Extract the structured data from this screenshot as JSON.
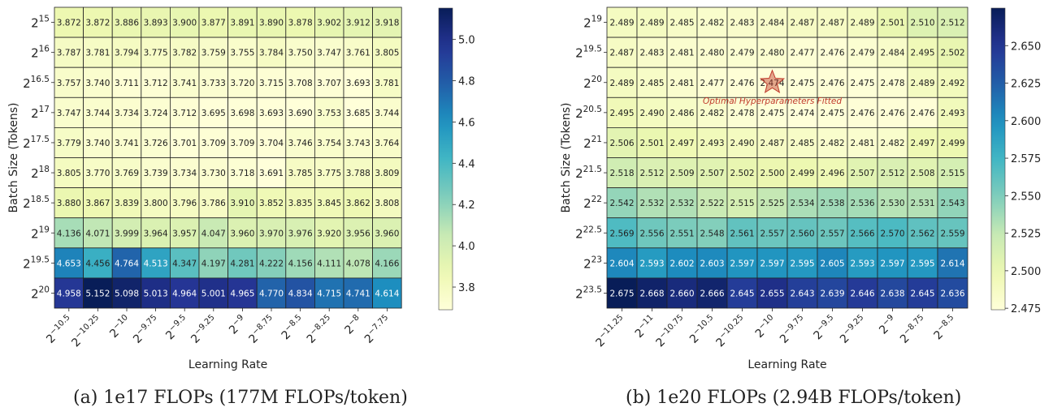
{
  "chart_data": [
    {
      "type": "heatmap",
      "caption": "(a)  1e17 FLOPs (177M FLOPs/token)",
      "xlabel": "Learning Rate",
      "ylabel": "Batch Size (Tokens)",
      "x_ticks": [
        "−10.5",
        "−10.25",
        "−10",
        "−9.75",
        "−9.5",
        "−9.25",
        "−9",
        "−8.75",
        "−8.5",
        "−8.25",
        "−8",
        "−7.75"
      ],
      "y_ticks": [
        "15",
        "16",
        "16.5",
        "17",
        "17.5",
        "18",
        "18.5",
        "19",
        "19.5",
        "20"
      ],
      "values": [
        [
          3.872,
          3.872,
          3.886,
          3.893,
          3.9,
          3.877,
          3.891,
          3.89,
          3.878,
          3.902,
          3.912,
          3.918
        ],
        [
          3.787,
          3.781,
          3.794,
          3.775,
          3.782,
          3.759,
          3.755,
          3.784,
          3.75,
          3.747,
          3.761,
          3.805
        ],
        [
          3.757,
          3.74,
          3.711,
          3.712,
          3.741,
          3.733,
          3.72,
          3.715,
          3.708,
          3.707,
          3.693,
          3.781
        ],
        [
          3.747,
          3.744,
          3.734,
          3.724,
          3.712,
          3.695,
          3.698,
          3.693,
          3.69,
          3.753,
          3.685,
          3.744
        ],
        [
          3.779,
          3.74,
          3.741,
          3.726,
          3.701,
          3.709,
          3.709,
          3.704,
          3.746,
          3.754,
          3.743,
          3.764
        ],
        [
          3.805,
          3.77,
          3.769,
          3.739,
          3.734,
          3.73,
          3.718,
          3.691,
          3.785,
          3.775,
          3.788,
          3.809
        ],
        [
          3.88,
          3.867,
          3.839,
          3.8,
          3.796,
          3.786,
          3.91,
          3.852,
          3.835,
          3.845,
          3.862,
          3.808
        ],
        [
          4.136,
          4.071,
          3.999,
          3.964,
          3.957,
          4.047,
          3.96,
          3.97,
          3.976,
          3.92,
          3.956,
          3.96
        ],
        [
          4.653,
          4.456,
          4.764,
          4.513,
          4.347,
          4.197,
          4.281,
          4.222,
          4.156,
          4.111,
          4.078,
          4.166
        ],
        [
          4.958,
          5.152,
          5.098,
          5.013,
          4.964,
          5.001,
          4.965,
          4.77,
          4.834,
          4.715,
          4.741,
          4.614
        ]
      ],
      "vmin": 3.69,
      "vmax": 5.152,
      "colorbar_ticks": [
        "3.8",
        "4.0",
        "4.2",
        "4.4",
        "4.6",
        "4.8",
        "5.0"
      ]
    },
    {
      "type": "heatmap",
      "caption": "(b)  1e20 FLOPs (2.94B FLOPs/token)",
      "xlabel": "Learning Rate",
      "ylabel": "Batch Size (Tokens)",
      "x_ticks": [
        "−11.25",
        "−11",
        "−10.75",
        "−10.5",
        "−10.25",
        "−10",
        "−9.75",
        "−9.5",
        "−9.25",
        "−9",
        "−8.75",
        "−8.5"
      ],
      "y_ticks": [
        "19",
        "19.5",
        "20",
        "20.5",
        "21",
        "21.5",
        "22",
        "22.5",
        "23",
        "23.5"
      ],
      "values": [
        [
          2.489,
          2.489,
          2.485,
          2.482,
          2.483,
          2.484,
          2.487,
          2.487,
          2.489,
          2.501,
          2.51,
          2.512
        ],
        [
          2.487,
          2.483,
          2.481,
          2.48,
          2.479,
          2.48,
          2.477,
          2.476,
          2.479,
          2.484,
          2.495,
          2.502
        ],
        [
          2.489,
          2.485,
          2.481,
          2.477,
          2.476,
          2.474,
          2.475,
          2.476,
          2.475,
          2.478,
          2.489,
          2.492
        ],
        [
          2.495,
          2.49,
          2.486,
          2.482,
          2.478,
          2.475,
          2.474,
          2.475,
          2.476,
          2.476,
          2.476,
          2.493
        ],
        [
          2.506,
          2.501,
          2.497,
          2.493,
          2.49,
          2.487,
          2.485,
          2.482,
          2.481,
          2.482,
          2.497,
          2.499
        ],
        [
          2.518,
          2.512,
          2.509,
          2.507,
          2.502,
          2.5,
          2.499,
          2.496,
          2.507,
          2.512,
          2.508,
          2.515
        ],
        [
          2.542,
          2.532,
          2.532,
          2.522,
          2.515,
          2.525,
          2.534,
          2.538,
          2.536,
          2.53,
          2.531,
          2.543
        ],
        [
          2.569,
          2.556,
          2.551,
          2.548,
          2.561,
          2.557,
          2.56,
          2.557,
          2.566,
          2.57,
          2.562,
          2.559
        ],
        [
          2.604,
          2.593,
          2.602,
          2.603,
          2.597,
          2.597,
          2.595,
          2.605,
          2.593,
          2.597,
          2.595,
          2.614
        ],
        [
          2.675,
          2.668,
          2.66,
          2.666,
          2.645,
          2.655,
          2.643,
          2.639,
          2.646,
          2.638,
          2.645,
          2.636
        ]
      ],
      "vmin": 2.474,
      "vmax": 2.675,
      "colorbar_ticks": [
        "2.475",
        "2.500",
        "2.525",
        "2.550",
        "2.575",
        "2.600",
        "2.625",
        "2.650"
      ],
      "annotation": {
        "text": "Optimal Hyperparameters Fitted",
        "row": 2,
        "col": 5,
        "color": "#c0392b"
      }
    }
  ]
}
